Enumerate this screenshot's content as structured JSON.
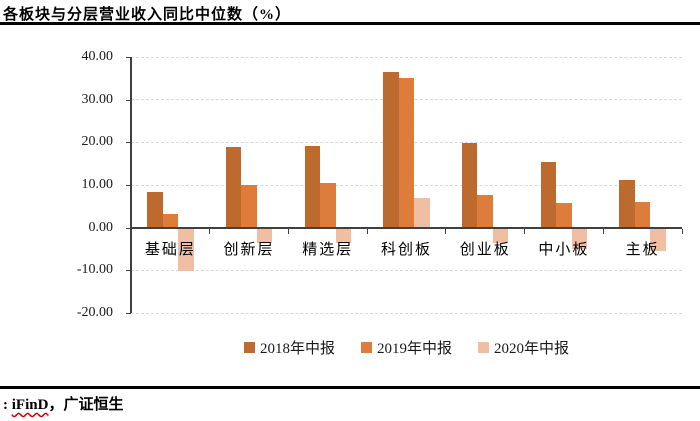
{
  "header": {
    "title": "各板块与分层营业收入同比中位数（%）"
  },
  "source": {
    "prefix": ": ",
    "name": "iFinD",
    "suffix": "，广证恒生"
  },
  "chart_data": {
    "type": "bar",
    "title": "各板块与分层营业收入同比中位数（%）",
    "categories": [
      "基础层",
      "创新层",
      "精选层",
      "科创板",
      "创业板",
      "中小板",
      "主板"
    ],
    "series": [
      {
        "name": "2018年中报",
        "color": "#BD6A2F",
        "values": [
          8.4,
          19.0,
          19.2,
          36.5,
          19.8,
          15.3,
          11.2
        ]
      },
      {
        "name": "2019年中报",
        "color": "#DE7C3B",
        "values": [
          3.3,
          10.0,
          10.4,
          35.0,
          7.6,
          5.7,
          6.0
        ]
      },
      {
        "name": "2020年中报",
        "color": "#EFBEA3",
        "values": [
          -9.9,
          -3.3,
          -3.4,
          7.0,
          -3.4,
          -4.8,
          -5.3
        ]
      }
    ],
    "ylim": [
      -20,
      40
    ],
    "yticks": [
      {
        "value": 40,
        "label": "40.00"
      },
      {
        "value": 30,
        "label": "30.00"
      },
      {
        "value": 20,
        "label": "20.00"
      },
      {
        "value": 10,
        "label": "10.00"
      },
      {
        "value": 0,
        "label": "0.00"
      },
      {
        "value": -10,
        "label": "-10.00"
      },
      {
        "value": -20,
        "label": "-20.00"
      }
    ],
    "grid": true,
    "legend_position": "bottom"
  },
  "colors": {
    "axis": "#404040",
    "gridline": "#D9D9D9",
    "rule": "#000000",
    "spellcheck_underline": "#CC0000"
  }
}
